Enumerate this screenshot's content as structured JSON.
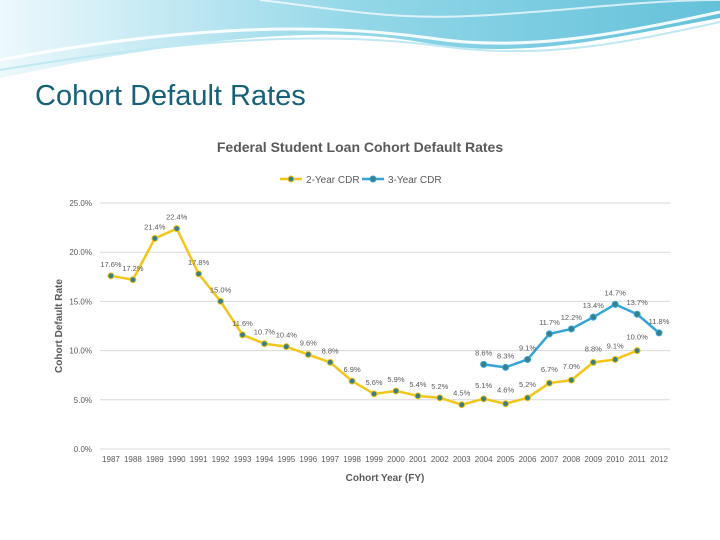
{
  "slide": {
    "title": "Cohort Default Rates"
  },
  "colors": {
    "title": "#17607a",
    "series_2yr": "#f2c618",
    "series_3yr": "#34a3d8",
    "marker_fill": "#3a7f86",
    "grid": "#d9d9d9",
    "text": "#595959",
    "banner": "#5cc3dc"
  },
  "chart_data": {
    "type": "line",
    "title": "Federal Student Loan Cohort Default Rates",
    "xlabel": "Cohort Year (FY)",
    "ylabel": "Cohort Default Rate",
    "ylim": [
      0,
      25
    ],
    "yticks": [
      "0.0%",
      "5.0%",
      "10.0%",
      "15.0%",
      "20.0%",
      "25.0%"
    ],
    "grid": true,
    "legend_position": "top",
    "categories": [
      "1987",
      "1988",
      "1989",
      "1990",
      "1991",
      "1992",
      "1993",
      "1994",
      "1995",
      "1996",
      "1997",
      "1998",
      "1999",
      "2000",
      "2001",
      "2002",
      "2003",
      "2004",
      "2005",
      "2006",
      "2007",
      "2008",
      "2009",
      "2010",
      "2011",
      "2012"
    ],
    "series": [
      {
        "name": "2-Year CDR",
        "values": [
          17.6,
          17.2,
          21.4,
          22.4,
          17.8,
          15.0,
          11.6,
          10.7,
          10.4,
          9.6,
          8.8,
          6.9,
          5.6,
          5.9,
          5.4,
          5.2,
          4.5,
          5.1,
          4.6,
          5.2,
          6.7,
          7.0,
          8.8,
          9.1,
          10.0,
          null
        ],
        "labels": [
          "17.6%",
          "17.2%",
          "21.4%",
          "22.4%",
          "17.8%",
          "15.0%",
          "11.6%",
          "10.7%",
          "10.4%",
          "9.6%",
          "8.8%",
          "6.9%",
          "5.6%",
          "5.9%",
          "5.4%",
          "5.2%",
          "4.5%",
          "5.1%",
          "4.6%",
          "5.2%",
          "6.7%",
          "7.0%",
          "8.8%",
          "9.1%",
          "10.0%",
          ""
        ]
      },
      {
        "name": "3-Year CDR",
        "values": [
          null,
          null,
          null,
          null,
          null,
          null,
          null,
          null,
          null,
          null,
          null,
          null,
          null,
          null,
          null,
          null,
          null,
          8.6,
          8.3,
          9.1,
          11.7,
          12.2,
          13.4,
          14.7,
          13.7,
          11.8
        ],
        "labels": [
          "",
          "",
          "",
          "",
          "",
          "",
          "",
          "",
          "",
          "",
          "",
          "",
          "",
          "",
          "",
          "",
          "",
          "8.6%",
          "8.3%",
          "9.1%",
          "11.7%",
          "12.2%",
          "13.4%",
          "14.7%",
          "13.7%",
          "11.8%"
        ]
      }
    ]
  }
}
